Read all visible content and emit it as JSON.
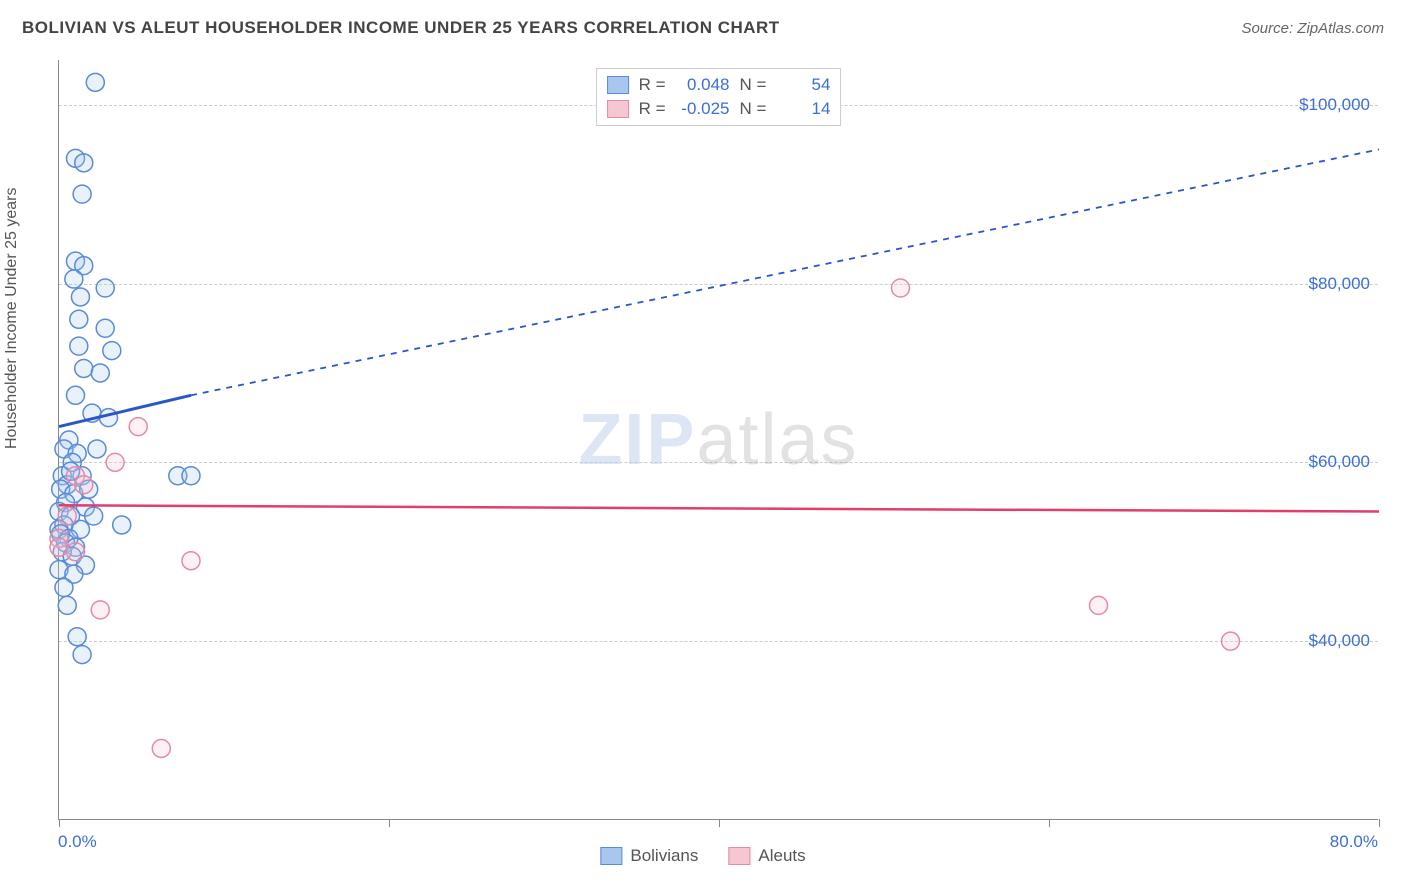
{
  "header": {
    "title": "BOLIVIAN VS ALEUT HOUSEHOLDER INCOME UNDER 25 YEARS CORRELATION CHART",
    "source": "Source: ZipAtlas.com"
  },
  "chart": {
    "type": "scatter",
    "background_color": "#ffffff",
    "grid_color": "#cccccc",
    "axis_color": "#888888",
    "label_color": "#3b6fd6",
    "y_axis_title": "Householder Income Under 25 years",
    "y_axis_title_fontsize": 16,
    "y_axis_title_color": "#555555",
    "xlim": [
      0,
      80
    ],
    "ylim": [
      20000,
      105000
    ],
    "x_tick_label_left": "0.0%",
    "x_tick_label_right": "80.0%",
    "x_minor_ticks": [
      0,
      20,
      40,
      60,
      80
    ],
    "y_ticks": [
      40000,
      60000,
      80000,
      100000
    ],
    "y_tick_labels": [
      "$40,000",
      "$60,000",
      "$80,000",
      "$100,000"
    ],
    "marker_radius": 9,
    "marker_stroke_width": 1.5,
    "marker_fill_opacity": 0.25,
    "series": [
      {
        "name": "Bolivians",
        "fill_color": "#a9c6ee",
        "stroke_color": "#5a8bd6",
        "line_color": "#2a56c6",
        "line_width": 3,
        "dash_pattern": "6,6",
        "r_value": "0.048",
        "n_value": "54",
        "regression": {
          "x1": 0,
          "y1": 64000,
          "x2_solid": 8,
          "y2_solid": 67500,
          "x2": 80,
          "y2": 95000
        },
        "points": [
          {
            "x": 2.2,
            "y": 102500
          },
          {
            "x": 1.0,
            "y": 94000
          },
          {
            "x": 1.5,
            "y": 93500
          },
          {
            "x": 1.4,
            "y": 90000
          },
          {
            "x": 1.0,
            "y": 82500
          },
          {
            "x": 1.5,
            "y": 82000
          },
          {
            "x": 0.9,
            "y": 80500
          },
          {
            "x": 2.8,
            "y": 79500
          },
          {
            "x": 1.3,
            "y": 78500
          },
          {
            "x": 1.2,
            "y": 76000
          },
          {
            "x": 2.8,
            "y": 75000
          },
          {
            "x": 1.2,
            "y": 73000
          },
          {
            "x": 3.2,
            "y": 72500
          },
          {
            "x": 1.5,
            "y": 70500
          },
          {
            "x": 2.5,
            "y": 70000
          },
          {
            "x": 1.0,
            "y": 67500
          },
          {
            "x": 2.0,
            "y": 65500
          },
          {
            "x": 3.0,
            "y": 65000
          },
          {
            "x": 0.6,
            "y": 62500
          },
          {
            "x": 0.3,
            "y": 61500
          },
          {
            "x": 1.1,
            "y": 61000
          },
          {
            "x": 0.8,
            "y": 60000
          },
          {
            "x": 0.2,
            "y": 58500
          },
          {
            "x": 1.4,
            "y": 58500
          },
          {
            "x": 7.2,
            "y": 58500
          },
          {
            "x": 8.0,
            "y": 58500
          },
          {
            "x": 0.5,
            "y": 57500
          },
          {
            "x": 0.1,
            "y": 57000
          },
          {
            "x": 0.9,
            "y": 56500
          },
          {
            "x": 0.4,
            "y": 55500
          },
          {
            "x": 1.6,
            "y": 55000
          },
          {
            "x": 0.0,
            "y": 54500
          },
          {
            "x": 0.7,
            "y": 54000
          },
          {
            "x": 2.1,
            "y": 54000
          },
          {
            "x": 0.3,
            "y": 53000
          },
          {
            "x": 0.0,
            "y": 52500
          },
          {
            "x": 1.3,
            "y": 52500
          },
          {
            "x": 3.8,
            "y": 53000
          },
          {
            "x": 0.1,
            "y": 52000
          },
          {
            "x": 0.6,
            "y": 51500
          },
          {
            "x": 0.4,
            "y": 51000
          },
          {
            "x": 1.0,
            "y": 50500
          },
          {
            "x": 0.2,
            "y": 50000
          },
          {
            "x": 0.8,
            "y": 49500
          },
          {
            "x": 1.6,
            "y": 48500
          },
          {
            "x": 0.0,
            "y": 48000
          },
          {
            "x": 0.9,
            "y": 47500
          },
          {
            "x": 0.3,
            "y": 46000
          },
          {
            "x": 1.1,
            "y": 40500
          },
          {
            "x": 1.4,
            "y": 38500
          },
          {
            "x": 0.5,
            "y": 44000
          },
          {
            "x": 2.3,
            "y": 61500
          },
          {
            "x": 1.8,
            "y": 57000
          },
          {
            "x": 0.7,
            "y": 59000
          }
        ]
      },
      {
        "name": "Aleuts",
        "fill_color": "#f6c6d2",
        "stroke_color": "#e58aa5",
        "line_color": "#e23d6d",
        "line_width": 2.5,
        "dash_pattern": "none",
        "r_value": "-0.025",
        "n_value": "14",
        "regression": {
          "x1": 0,
          "y1": 55200,
          "x2_solid": 80,
          "y2_solid": 54500,
          "x2": 80,
          "y2": 54500
        },
        "points": [
          {
            "x": 51.0,
            "y": 79500
          },
          {
            "x": 63.0,
            "y": 44000
          },
          {
            "x": 71.0,
            "y": 40000
          },
          {
            "x": 4.8,
            "y": 64000
          },
          {
            "x": 3.4,
            "y": 60000
          },
          {
            "x": 1.0,
            "y": 58500
          },
          {
            "x": 1.5,
            "y": 57500
          },
          {
            "x": 0.0,
            "y": 51500
          },
          {
            "x": 0.0,
            "y": 50500
          },
          {
            "x": 1.0,
            "y": 50000
          },
          {
            "x": 8.0,
            "y": 49000
          },
          {
            "x": 2.5,
            "y": 43500
          },
          {
            "x": 6.2,
            "y": 28000
          },
          {
            "x": 0.5,
            "y": 54000
          }
        ]
      }
    ],
    "watermark": {
      "text_a": "ZIP",
      "text_b": "atlas"
    }
  },
  "legend_bottom": [
    {
      "label": "Bolivians",
      "fill": "#a9c6ee",
      "stroke": "#5a8bd6"
    },
    {
      "label": "Aleuts",
      "fill": "#f6c6d2",
      "stroke": "#e58aa5"
    }
  ]
}
